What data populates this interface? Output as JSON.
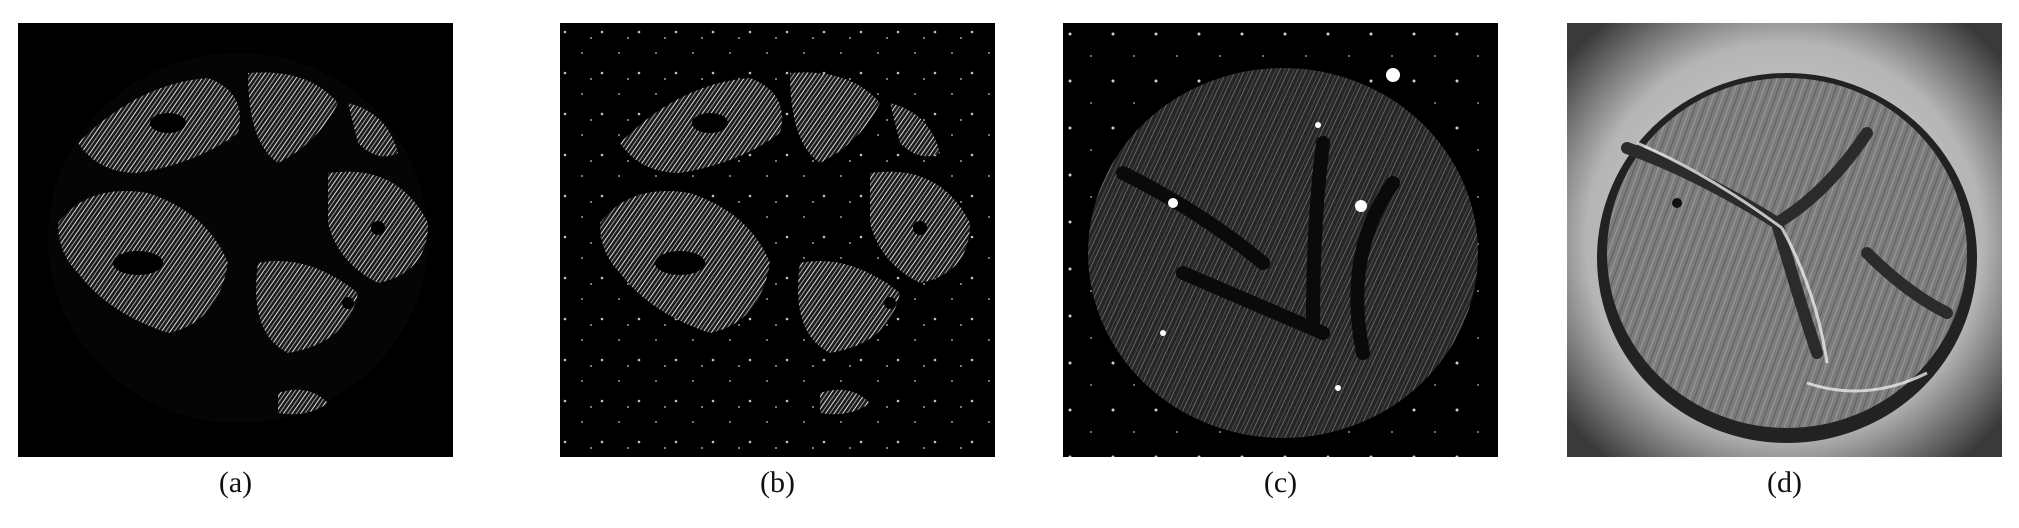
{
  "figure": {
    "panels": [
      {
        "caption": "(a)",
        "description_icon": "grayscale-microscopy-tissue-core-image"
      },
      {
        "caption": "(b)",
        "description_icon": "grayscale-microscopy-tissue-core-image"
      },
      {
        "caption": "(c)",
        "description_icon": "grayscale-microscopy-tissue-core-image"
      },
      {
        "caption": "(d)",
        "description_icon": "grayscale-microscopy-tissue-core-image"
      }
    ]
  },
  "colors": {
    "background": "#000000",
    "tissue_bright": "#e6e6e6",
    "tissue_dim": "#6a6a6a",
    "panel_d_background": "#c8c8c8"
  }
}
